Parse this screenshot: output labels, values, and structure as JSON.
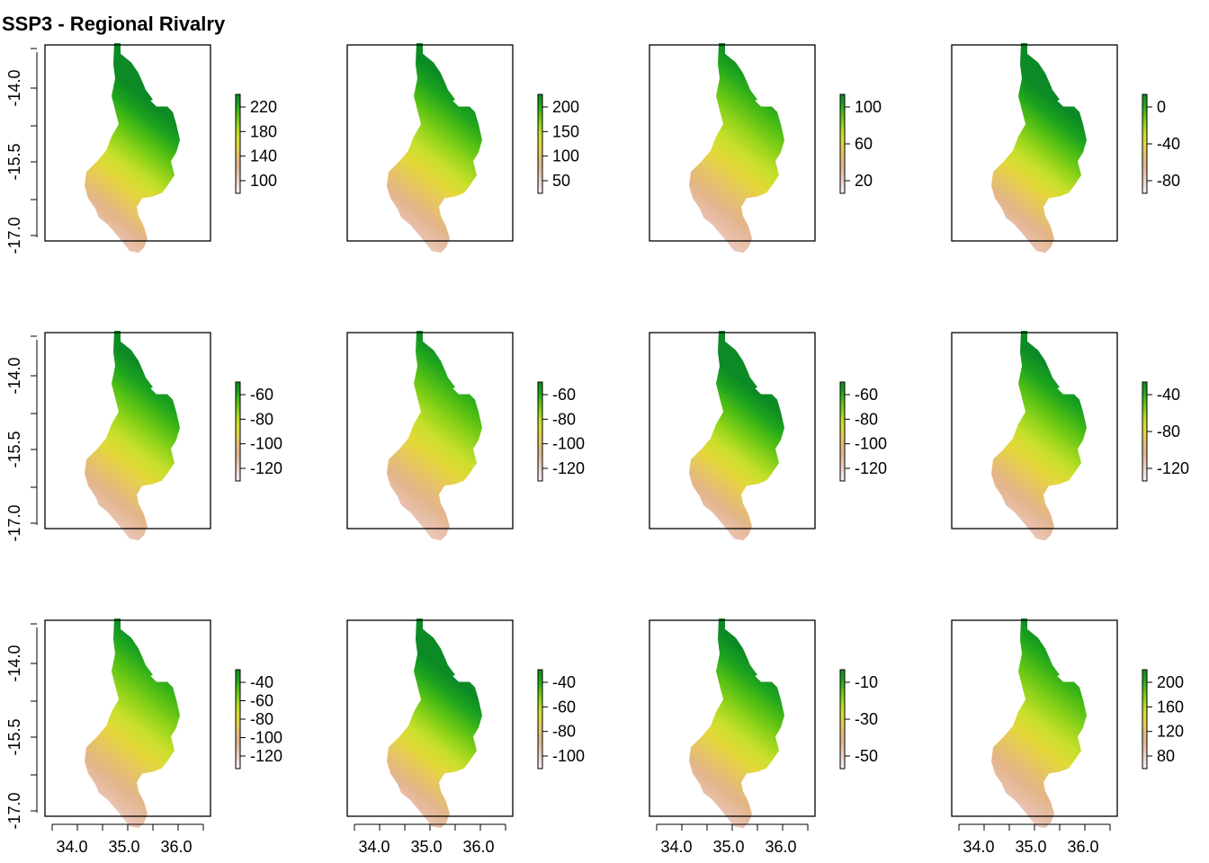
{
  "figure": {
    "title": "SSP3 - Regional Rivalry"
  },
  "axes": {
    "y_ticks": [
      "-14.0",
      "-15.5",
      "-17.0"
    ],
    "x_ticks": [
      "34.0",
      "35.0",
      "36.0"
    ]
  },
  "colors": {
    "ramp": [
      "#f3f3f3",
      "#efd9d0",
      "#e8c0ac",
      "#e3b58a",
      "#e6c463",
      "#e4d83a",
      "#c7df2a",
      "#90d31a",
      "#54c013",
      "#1fa51e",
      "#0b8a25"
    ],
    "frame": "#000000"
  },
  "chart_data": [
    {
      "type": "heatmap",
      "panel": 1,
      "legend": {
        "ticks": [
          "220",
          "180",
          "140",
          "100"
        ]
      },
      "range": [
        80,
        245
      ]
    },
    {
      "type": "heatmap",
      "panel": 2,
      "legend": {
        "ticks": [
          "200",
          "150",
          "100",
          "50"
        ]
      },
      "range": [
        40,
        215
      ]
    },
    {
      "type": "heatmap",
      "panel": 3,
      "legend": {
        "ticks": [
          "100",
          "60",
          "20"
        ]
      },
      "range": [
        0,
        140
      ]
    },
    {
      "type": "heatmap",
      "panel": 4,
      "legend": {
        "ticks": [
          "0",
          "-40",
          "-80"
        ]
      },
      "range": [
        -90,
        10
      ]
    },
    {
      "type": "heatmap",
      "panel": 5,
      "legend": {
        "ticks": [
          "-60",
          "-80",
          "-100",
          "-120"
        ]
      },
      "range": [
        -130,
        -50
      ]
    },
    {
      "type": "heatmap",
      "panel": 6,
      "legend": {
        "ticks": [
          "-60",
          "-80",
          "-100",
          "-120"
        ]
      },
      "range": [
        -130,
        -50
      ]
    },
    {
      "type": "heatmap",
      "panel": 7,
      "legend": {
        "ticks": [
          "-60",
          "-80",
          "-100",
          "-120"
        ]
      },
      "range": [
        -130,
        -50
      ]
    },
    {
      "type": "heatmap",
      "panel": 8,
      "legend": {
        "ticks": [
          "-40",
          "-80",
          "-120"
        ]
      },
      "range": [
        -130,
        -20
      ]
    },
    {
      "type": "heatmap",
      "panel": 9,
      "legend": {
        "ticks": [
          "-40",
          "-60",
          "-80",
          "-100",
          "-120"
        ]
      },
      "range": [
        -130,
        -30
      ]
    },
    {
      "type": "heatmap",
      "panel": 10,
      "legend": {
        "ticks": [
          "-40",
          "-60",
          "-80",
          "-100"
        ]
      },
      "range": [
        -110,
        -30
      ]
    },
    {
      "type": "heatmap",
      "panel": 11,
      "legend": {
        "ticks": [
          "-10",
          "-30",
          "-50"
        ]
      },
      "range": [
        -60,
        5
      ]
    },
    {
      "type": "heatmap",
      "panel": 12,
      "legend": {
        "ticks": [
          "200",
          "160",
          "120",
          "80"
        ]
      },
      "range": [
        70,
        215
      ]
    }
  ]
}
